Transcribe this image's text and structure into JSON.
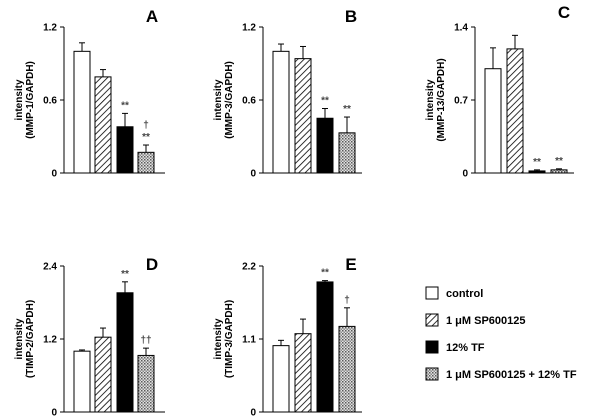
{
  "colors": {
    "axis": "#000000",
    "control_fill": "#ffffff",
    "sp_fill": "hatch-diagonal",
    "tf_fill": "#000000",
    "combo_fill": "crosshatch-gray"
  },
  "legend": {
    "placement": "bottom-right",
    "items": [
      {
        "label": "control",
        "key": "control"
      },
      {
        "label": "1 μM SP600125",
        "key": "sp"
      },
      {
        "label": "12% TF",
        "key": "tf"
      },
      {
        "label": "1 μM SP600125 + 12% TF",
        "key": "combo"
      }
    ]
  },
  "chart_data": [
    {
      "panel": "A",
      "type": "bar",
      "ylabel": [
        "intensity",
        "(MMP-1/GAPDH)"
      ],
      "ylim": [
        0,
        1.2
      ],
      "yticks": [
        "0",
        "0.6",
        "1.2"
      ],
      "ytick_values": [
        0,
        0.6,
        1.2
      ],
      "categories": [
        "control",
        "1 μM SP600125",
        "12% TF",
        "1 μM SP600125 + 12% TF"
      ],
      "values": [
        1.0,
        0.79,
        0.38,
        0.17
      ],
      "errors": [
        0.07,
        0.06,
        0.11,
        0.06
      ],
      "annotations": [
        "",
        "",
        "**",
        "†\n**"
      ]
    },
    {
      "panel": "B",
      "type": "bar",
      "ylabel": [
        "intensity",
        "(MMP-3/GAPDH)"
      ],
      "ylim": [
        0,
        1.2
      ],
      "yticks": [
        "0",
        "0.6",
        "1.2"
      ],
      "ytick_values": [
        0,
        0.6,
        1.2
      ],
      "categories": [
        "control",
        "1 μM SP600125",
        "12% TF",
        "1 μM SP600125 + 12% TF"
      ],
      "values": [
        1.0,
        0.94,
        0.45,
        0.33
      ],
      "errors": [
        0.06,
        0.1,
        0.08,
        0.13
      ],
      "annotations": [
        "",
        "",
        "**",
        "**"
      ]
    },
    {
      "panel": "C",
      "type": "bar",
      "ylabel": [
        "intensity",
        "(MMP-13/GAPDH)"
      ],
      "ylim": [
        0,
        1.4
      ],
      "yticks": [
        "0",
        "0.7",
        "1.4"
      ],
      "ytick_values": [
        0,
        0.7,
        1.4
      ],
      "categories": [
        "control",
        "1 μM SP600125",
        "12% TF",
        "1 μM SP600125 + 12% TF"
      ],
      "values": [
        1.0,
        1.19,
        0.02,
        0.03
      ],
      "errors": [
        0.2,
        0.13,
        0.01,
        0.01
      ],
      "annotations": [
        "",
        "",
        "**",
        "**"
      ]
    },
    {
      "panel": "D",
      "type": "bar",
      "ylabel": [
        "intensity",
        "(TIMP-2/GAPDH)"
      ],
      "ylim": [
        0,
        2.4
      ],
      "yticks": [
        "0",
        "1.2",
        "2.4"
      ],
      "ytick_values": [
        0,
        1.2,
        2.4
      ],
      "categories": [
        "control",
        "1 μM SP600125",
        "12% TF",
        "1 μM SP600125 + 12% TF"
      ],
      "values": [
        1.0,
        1.23,
        1.96,
        0.93
      ],
      "errors": [
        0.02,
        0.15,
        0.18,
        0.12
      ],
      "annotations": [
        "",
        "",
        "**",
        "††"
      ]
    },
    {
      "panel": "E",
      "type": "bar",
      "ylabel": [
        "intensity",
        "(TIMP-3/GAPDH)"
      ],
      "ylim": [
        0,
        2.2
      ],
      "yticks": [
        "0",
        "1.1",
        "2.2"
      ],
      "ytick_values": [
        0,
        1.1,
        2.2
      ],
      "categories": [
        "control",
        "1 μM SP600125",
        "12% TF",
        "1 μM SP600125 + 12% TF"
      ],
      "values": [
        1.0,
        1.18,
        1.96,
        1.29
      ],
      "errors": [
        0.08,
        0.22,
        0.02,
        0.28
      ],
      "annotations": [
        "",
        "",
        "**",
        "†"
      ]
    }
  ]
}
